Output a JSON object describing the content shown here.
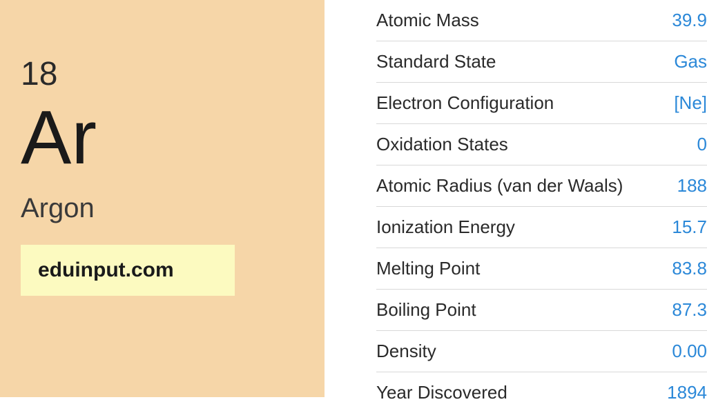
{
  "element": {
    "atomic_number": "18",
    "symbol": "Ar",
    "name": "Argon",
    "card_background": "#f6d6a8",
    "text_color": "#2a2a2a"
  },
  "watermark": {
    "text": "eduinput.com",
    "background": "#fcfac0"
  },
  "properties": {
    "value_color": "#2b88d8",
    "label_color": "#2a2a2a",
    "border_color": "#d8d8d8",
    "rows": [
      {
        "label": "Atomic Mass",
        "value": "39.9"
      },
      {
        "label": "Standard State",
        "value": "Gas"
      },
      {
        "label": "Electron Configuration",
        "value": "[Ne]"
      },
      {
        "label": "Oxidation States",
        "value": "0"
      },
      {
        "label": "Atomic Radius (van der Waals)",
        "value": "188"
      },
      {
        "label": "Ionization Energy",
        "value": "15.7"
      },
      {
        "label": "Melting Point",
        "value": "83.8"
      },
      {
        "label": "Boiling Point",
        "value": "87.3"
      },
      {
        "label": "Density",
        "value": "0.00"
      },
      {
        "label": "Year Discovered",
        "value": "1894"
      }
    ]
  }
}
